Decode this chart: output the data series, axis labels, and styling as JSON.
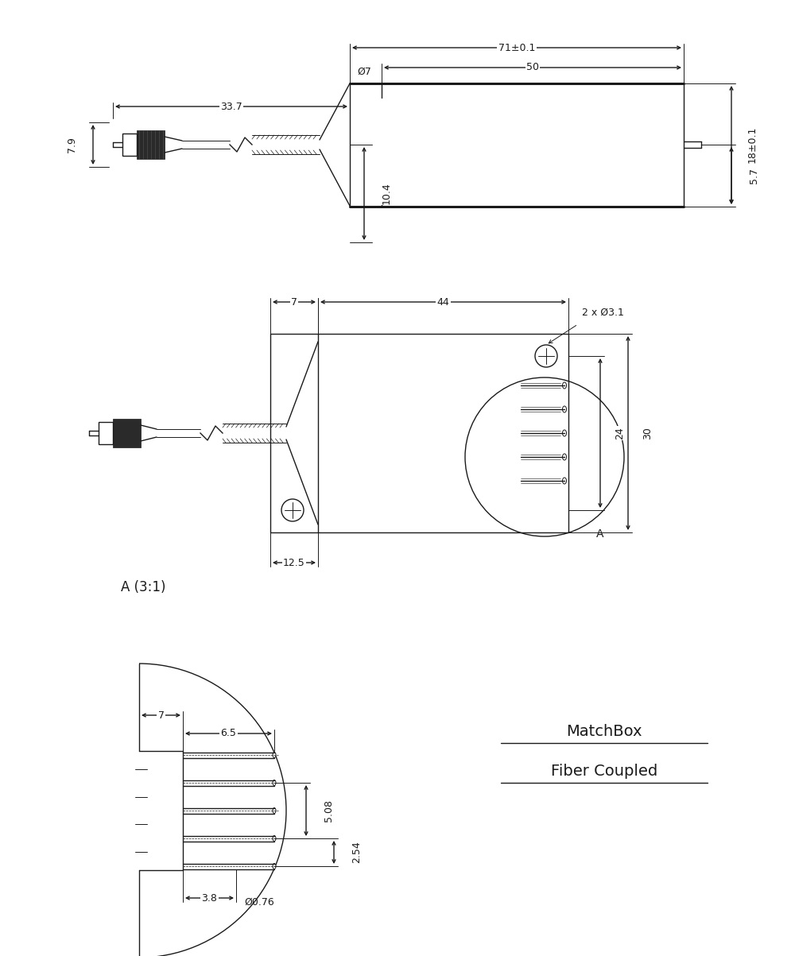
{
  "bg_color": "#ffffff",
  "line_color": "#1a1a1a",
  "lw": 1.0,
  "tlw": 0.7,
  "thklw": 2.2,
  "fs": 9,
  "fs_title": 14,
  "views": {
    "side": {
      "dims": {
        "71_01": "71±0.1",
        "50": "50",
        "33_7": "33.7",
        "d7": "Ø7",
        "10_4": "10.4",
        "7_9": "7.9",
        "18_01": "18±0.1",
        "5_7": "5.7"
      }
    },
    "top": {
      "dims": {
        "7": "7",
        "44": "44",
        "2xd31": "2 x Ø3.1",
        "12_5": "12.5",
        "24": "24",
        "30": "30"
      }
    },
    "detail": {
      "label": "A (3:1)",
      "dims": {
        "7": "7",
        "6_5": "6.5",
        "5_08": "5.08",
        "2_54": "2.54",
        "3_8": "3.8",
        "d076": "Ø0.76"
      }
    }
  },
  "matchbox_title_line1": "MatchBox",
  "matchbox_title_line2": "Fiber Coupled"
}
